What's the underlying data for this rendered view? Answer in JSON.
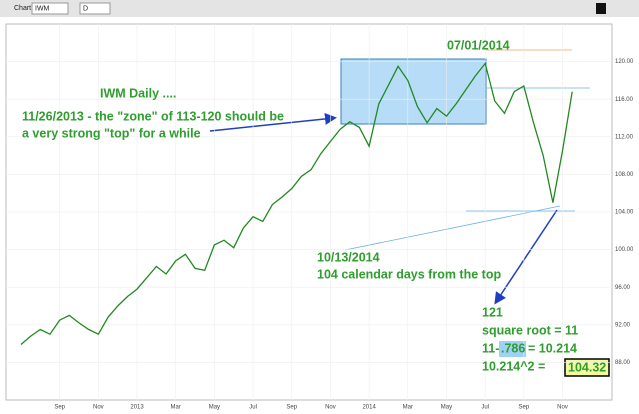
{
  "toolbar": {
    "chart": "Chart",
    "symbol": "IWM",
    "period": "D"
  },
  "chart_data": {
    "type": "line",
    "color": "#1f8a1f",
    "categories": [
      null,
      null,
      null,
      null,
      "Sep",
      null,
      null,
      null,
      "Nov",
      null,
      null,
      null,
      "2013",
      null,
      null,
      null,
      "Mar",
      null,
      null,
      null,
      "May",
      null,
      null,
      null,
      "Jul",
      null,
      null,
      null,
      "Sep",
      null,
      null,
      null,
      "Nov",
      null,
      null,
      null,
      "2014",
      null,
      null,
      null,
      "Mar",
      null,
      null,
      null,
      "May",
      null,
      null,
      null,
      "Jul",
      null,
      null,
      null,
      "Sep",
      null,
      null,
      null,
      "Nov",
      null
    ],
    "values": [
      89.9,
      90.8,
      91.5,
      91.0,
      92.5,
      93.0,
      92.2,
      91.5,
      91.0,
      92.8,
      94.0,
      95.0,
      95.8,
      97.0,
      98.2,
      97.4,
      98.8,
      99.5,
      98.0,
      97.8,
      100.5,
      101.0,
      100.2,
      102.3,
      103.5,
      103.0,
      104.8,
      105.6,
      106.5,
      107.8,
      108.5,
      110.2,
      111.5,
      112.8,
      113.6,
      113.0,
      111.0,
      115.5,
      117.5,
      119.5,
      118.0,
      115.2,
      113.5,
      115.0,
      114.2,
      115.5,
      117.0,
      118.5,
      119.8,
      115.8,
      114.5,
      116.8,
      117.4,
      113.5,
      110.0,
      105.0,
      110.5,
      116.8
    ],
    "ylim": [
      84,
      124
    ],
    "yticks": [
      {
        "value": 88,
        "label": "88.00"
      },
      {
        "value": 92,
        "label": "92.00"
      },
      {
        "value": 96,
        "label": "96.00"
      },
      {
        "value": 100,
        "label": "100.00"
      },
      {
        "value": 104,
        "label": "104.00"
      },
      {
        "value": 108,
        "label": "108.00"
      },
      {
        "value": 112,
        "label": "112.00"
      },
      {
        "value": 116,
        "label": "116.00"
      },
      {
        "value": 120,
        "label": "120.00"
      }
    ],
    "grid": true,
    "annotations": [
      "IWM Daily ....",
      "11/26/2013 - the \"zone\" of 113-120 should be",
      "a very strong \"top\" for a while",
      "07/01/2014",
      "10/13/2014",
      "104 calendar days from the top",
      "121",
      "square root = 11",
      "11-",
      ".786",
      "= 10.214",
      "10.214^2 =",
      "104.32"
    ]
  }
}
